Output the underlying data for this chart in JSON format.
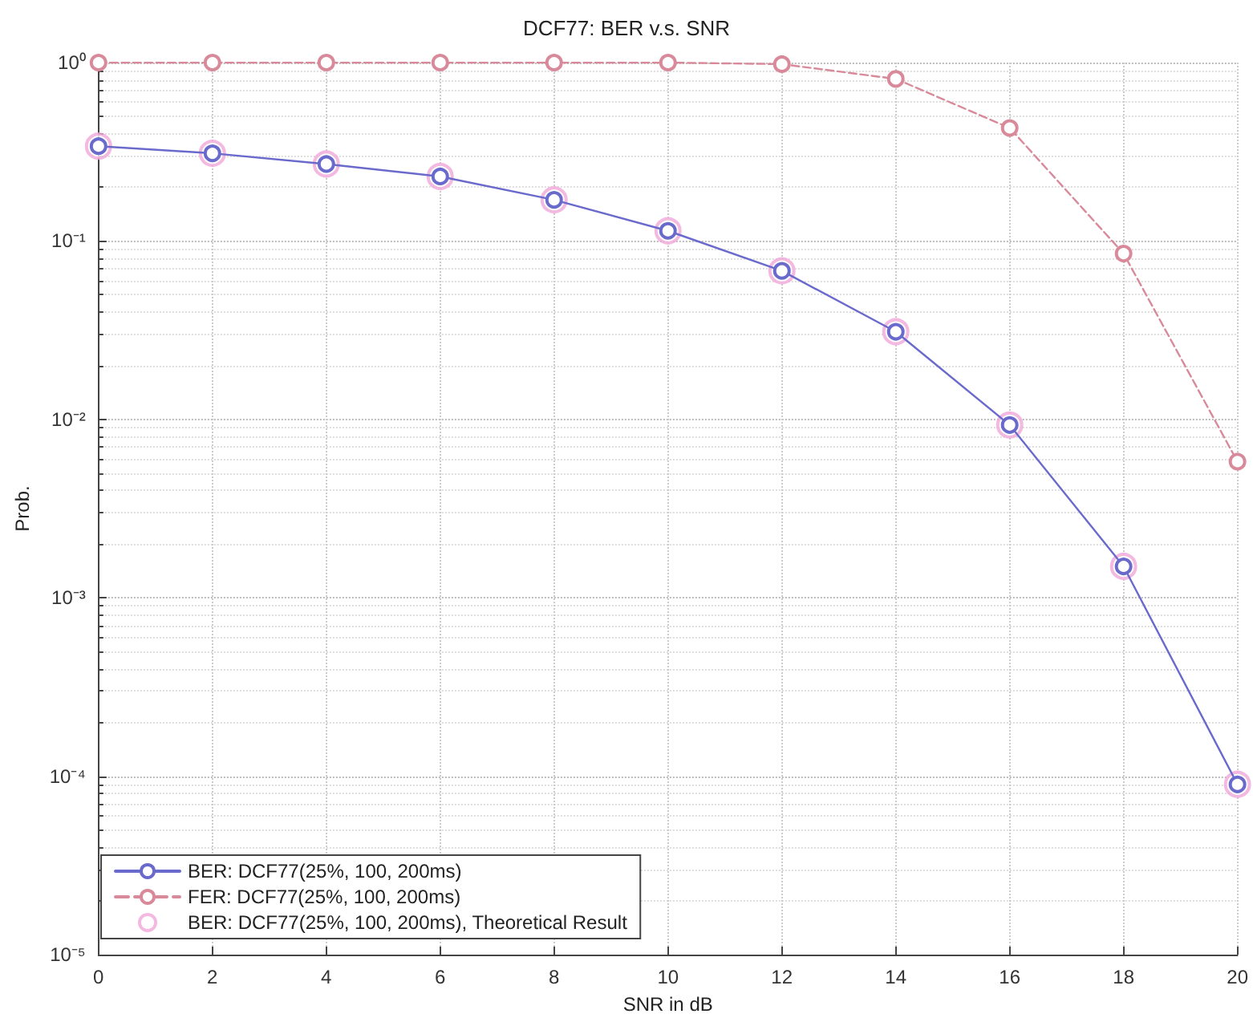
{
  "chart_data": {
    "type": "line",
    "title": "DCF77: BER v.s. SNR",
    "xlabel": "SNR in dB",
    "ylabel": "Prob.",
    "x": [
      0,
      2,
      4,
      6,
      8,
      10,
      12,
      14,
      16,
      18,
      20
    ],
    "series": [
      {
        "name": "BER: DCF77(25%, 100, 200ms)",
        "color": "#6a6acd",
        "line_style": "solid",
        "values": [
          0.34,
          0.31,
          0.27,
          0.23,
          0.17,
          0.114,
          0.068,
          0.031,
          0.0093,
          0.0015,
          9e-05
        ]
      },
      {
        "name": "FER: DCF77(25%, 100, 200ms)",
        "color": "#d98a9a",
        "line_style": "dashed",
        "values": [
          1,
          1,
          1,
          1,
          1,
          1,
          0.98,
          0.81,
          0.43,
          0.085,
          0.0058
        ]
      },
      {
        "name": "BER: DCF77(25%, 100, 200ms), Theoretical Result",
        "type": "scatter",
        "color": "#f0a8d8",
        "values": [
          0.34,
          0.31,
          0.27,
          0.23,
          0.17,
          0.114,
          0.068,
          0.031,
          0.0093,
          0.0015,
          9e-05
        ]
      }
    ],
    "xlim": [
      0,
      20
    ],
    "xticks": [
      0,
      2,
      4,
      6,
      8,
      10,
      12,
      14,
      16,
      18,
      20
    ],
    "ylim": [
      1e-05,
      1
    ],
    "yticks": [
      {
        "value": 1e-05,
        "label": "10⁻⁵"
      },
      {
        "value": 0.0001,
        "label": "10⁻⁴"
      },
      {
        "value": 0.001,
        "label": "10⁻³"
      },
      {
        "value": 0.01,
        "label": "10⁻²"
      },
      {
        "value": 0.1,
        "label": "10⁻¹"
      },
      {
        "value": 1,
        "label": "10⁰"
      }
    ],
    "log": "y",
    "grid": true,
    "legend": "bottom left",
    "marker": "circle"
  }
}
